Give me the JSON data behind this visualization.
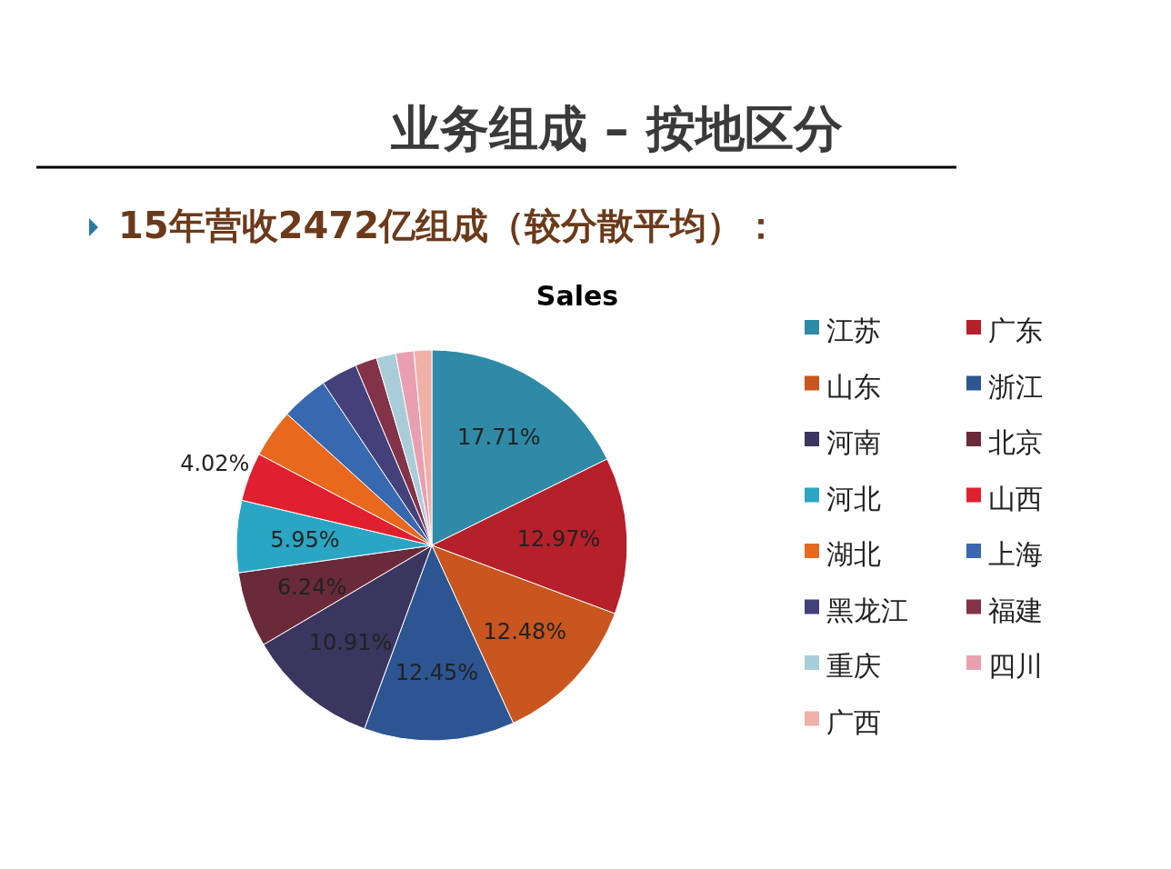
{
  "chart_data": {
    "type": "pie",
    "title": "业务组成 – 按地区分",
    "subtitle": "15年营收2472亿组成（较分散平均）：",
    "annotations": [
      "Sales"
    ],
    "categories": [
      "江苏",
      "广东",
      "山东",
      "浙江",
      "河南",
      "北京",
      "河北",
      "山西",
      "湖北",
      "上海",
      "黑龙江",
      "福建",
      "重庆",
      "四川",
      "广西"
    ],
    "values": [
      17.71,
      12.97,
      12.48,
      12.45,
      10.91,
      6.24,
      5.95,
      4.02,
      4.0,
      3.9,
      3.0,
      1.8,
      1.6,
      1.5,
      1.47
    ],
    "value_labels": [
      "17.71%",
      "12.97%",
      "12.48%",
      "12.45%",
      "10.91%",
      "6.24%",
      "5.95%",
      "4.02%",
      null,
      null,
      null,
      null,
      null,
      null,
      null
    ],
    "colors": [
      "#2e8aa6",
      "#b5202a",
      "#c8561e",
      "#2d5592",
      "#3a3660",
      "#6a2a3a",
      "#2aa6c4",
      "#e0202e",
      "#e8691e",
      "#3868b0",
      "#44407a",
      "#823348",
      "#a8cdd8",
      "#e8a0b0",
      "#f0b0a8"
    ],
    "legend": "right"
  }
}
